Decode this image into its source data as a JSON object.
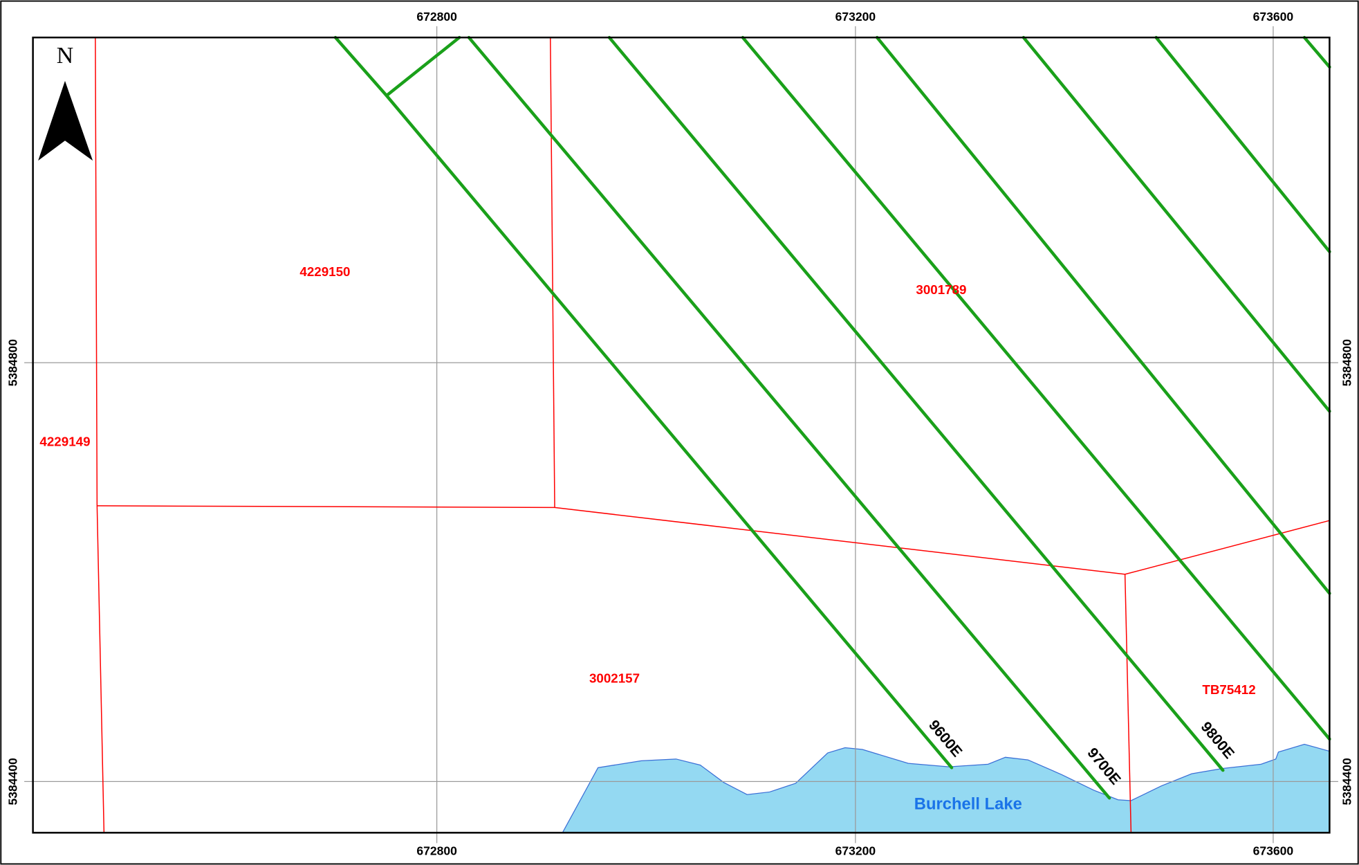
{
  "map": {
    "north_label": "N",
    "easting_labels": [
      "672800",
      "673200",
      "673600"
    ],
    "northing_labels": [
      "5384800",
      "5384400"
    ],
    "claims": [
      "4229150",
      "3001789",
      "4229149",
      "3002157",
      "TB75412"
    ],
    "survey_lines": [
      "9600E",
      "9700E",
      "9800E"
    ],
    "lake": "Burchell Lake"
  }
}
